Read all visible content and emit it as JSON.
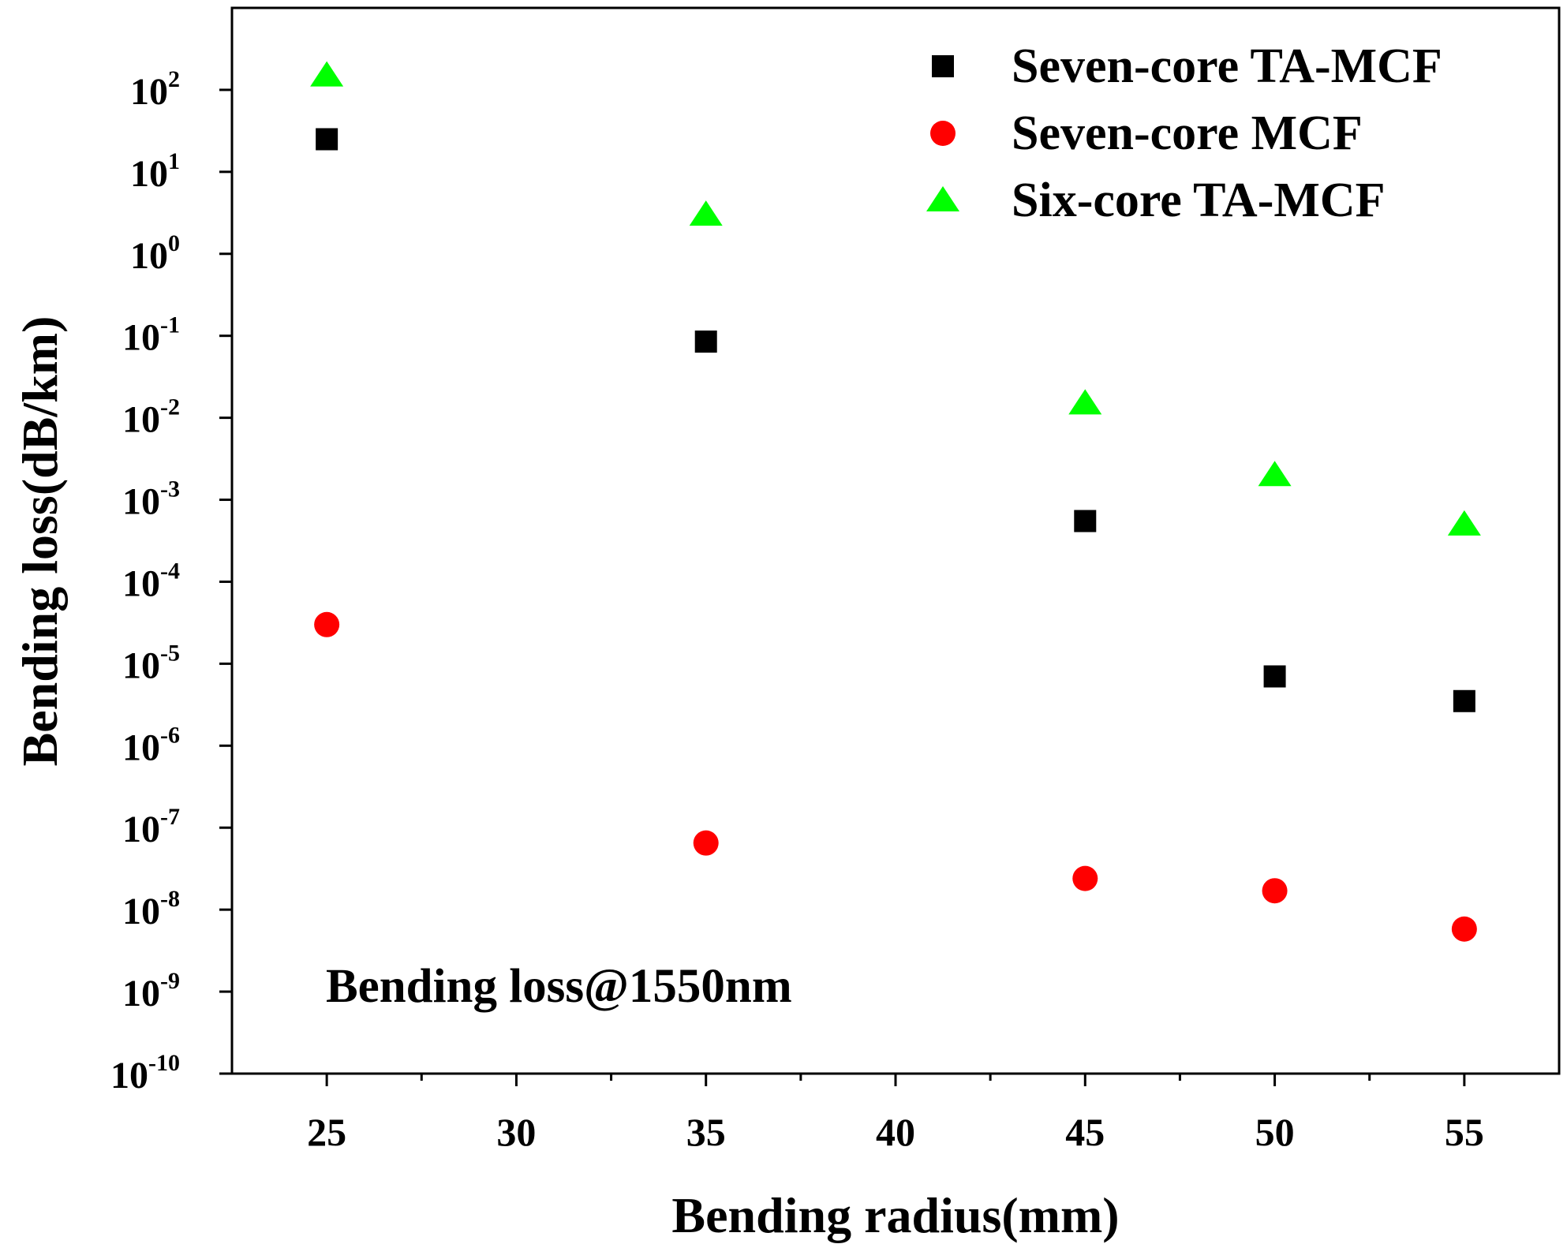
{
  "chart_data": {
    "type": "scatter",
    "title": "",
    "annotation": "Bending loss@1550nm",
    "xlabel": "Bending radius(mm)",
    "ylabel": "Bending loss(dB/km)",
    "xlim": [
      22.5,
      57.5
    ],
    "yscale": "log",
    "ylim": [
      1e-10,
      1000
    ],
    "xticks": [
      25,
      30,
      35,
      40,
      45,
      50,
      55
    ],
    "xtick_labels": [
      "25",
      "30",
      "35",
      "40",
      "45",
      "50",
      "55"
    ],
    "yticks": [
      {
        "base": "10",
        "exp": "2"
      },
      {
        "base": "10",
        "exp": "1"
      },
      {
        "base": "10",
        "exp": "0"
      },
      {
        "base": "10",
        "exp": "-1"
      },
      {
        "base": "10",
        "exp": "-2"
      },
      {
        "base": "10",
        "exp": "-3"
      },
      {
        "base": "10",
        "exp": "-4"
      },
      {
        "base": "10",
        "exp": "-5"
      },
      {
        "base": "10",
        "exp": "-6"
      },
      {
        "base": "10",
        "exp": "-7"
      },
      {
        "base": "10",
        "exp": "-8"
      },
      {
        "base": "10",
        "exp": "-9"
      },
      {
        "base": "10",
        "exp": "-10"
      }
    ],
    "grid": false,
    "legend_position": "top-right",
    "series": [
      {
        "name": "Seven-core TA-MCF",
        "marker": "square",
        "color": "#000000",
        "x": [
          25,
          35,
          45,
          50,
          55
        ],
        "y": [
          25,
          0.085,
          0.00055,
          7e-06,
          3.5e-06
        ]
      },
      {
        "name": "Seven-core MCF",
        "marker": "circle",
        "color": "#ff0000",
        "x": [
          25,
          35,
          45,
          50,
          55
        ],
        "y": [
          3e-05,
          6.5e-08,
          2.4e-08,
          1.7e-08,
          5.8e-09
        ]
      },
      {
        "name": "Six-core TA-MCF",
        "marker": "triangle",
        "color": "#00ff00",
        "x": [
          25,
          35,
          45,
          50,
          55
        ],
        "y": [
          150,
          3,
          0.015,
          0.002,
          0.0005
        ]
      }
    ]
  }
}
